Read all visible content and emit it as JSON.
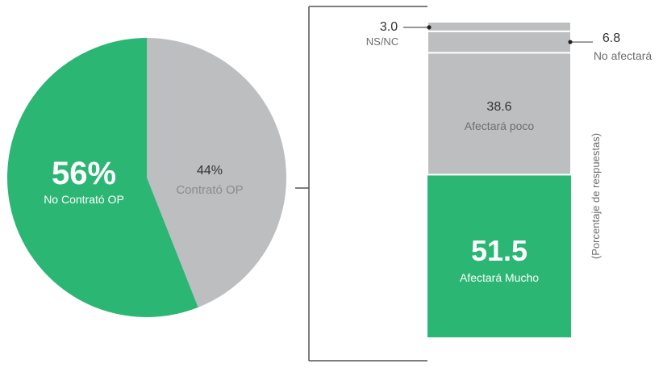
{
  "colors": {
    "green": "#2bb673",
    "gray": "#bdbec0",
    "line": "#555555",
    "text_dark": "#333333",
    "text_gray": "#6d6e71",
    "white": "#ffffff"
  },
  "chart_data": [
    {
      "type": "pie",
      "title": "",
      "slices": [
        {
          "label": "No Contrató OP",
          "value": 56,
          "display": "56%",
          "color": "#2bb673"
        },
        {
          "label": "Contrató OP",
          "value": 44,
          "display": "44%",
          "color": "#bdbec0"
        }
      ]
    },
    {
      "type": "bar",
      "stacked": true,
      "title": "",
      "ylabel": "(Porcentaje de respuestas)",
      "ylim": [
        0,
        100
      ],
      "segments": [
        {
          "label": "Afectará Mucho",
          "value": 51.5,
          "display": "51.5",
          "color": "#2bb673"
        },
        {
          "label": "Afectará poco",
          "value": 38.6,
          "display": "38.6",
          "color": "#bdbec0"
        },
        {
          "label": "No afectará",
          "value": 6.8,
          "display": "6.8",
          "color": "#bdbec0"
        },
        {
          "label": "NS/NC",
          "value": 3.0,
          "display": "3.0",
          "color": "#bdbec0"
        }
      ]
    }
  ]
}
